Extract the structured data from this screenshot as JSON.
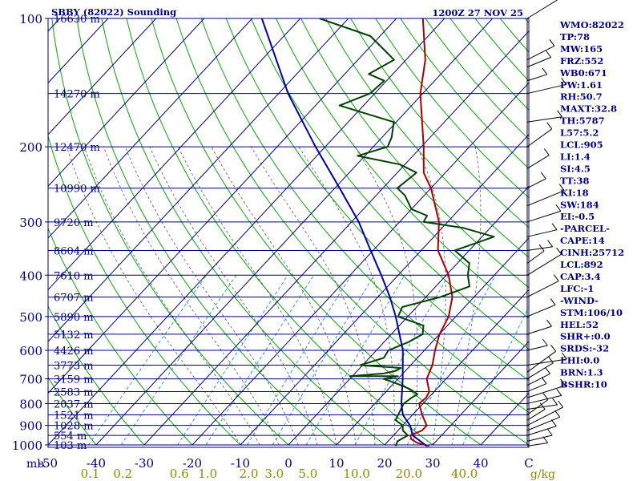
{
  "chart_data": {
    "type": "line",
    "title": "SBBY (82022) Sounding",
    "valid_time": "1200Z 27 NOV 25",
    "pressure_axis": {
      "unit_label": "mb",
      "ticks": [
        100,
        200,
        300,
        400,
        500,
        600,
        700,
        800,
        900,
        1000
      ],
      "range_hpa": [
        1000,
        100
      ]
    },
    "temperature_axis": {
      "ticks": [
        "-50",
        "-40",
        "-30",
        "-20",
        "-10",
        "0",
        "10",
        "20",
        "30",
        "40",
        "C"
      ],
      "range_c": [
        -50,
        50
      ]
    },
    "mixing_ratio_labels": {
      "values": [
        "0.1",
        "0.2",
        "0.6",
        "1.0",
        "2.0",
        "3.0",
        "5.0",
        "10.0",
        "20.0",
        "40.0"
      ],
      "unit": "g/kg"
    },
    "height_labels": [
      {
        "p": 100,
        "label": "16630 m"
      },
      {
        "p": 150,
        "label": "14270 m"
      },
      {
        "p": 200,
        "label": "12470 m"
      },
      {
        "p": 250,
        "label": "10990 m"
      },
      {
        "p": 300,
        "label": "9720 m"
      },
      {
        "p": 350,
        "label": "8604 m"
      },
      {
        "p": 400,
        "label": "7610 m"
      },
      {
        "p": 450,
        "label": "6707 m"
      },
      {
        "p": 500,
        "label": "5890 m"
      },
      {
        "p": 550,
        "label": "5132 m"
      },
      {
        "p": 600,
        "label": "4426 m"
      },
      {
        "p": 650,
        "label": "3773 m"
      },
      {
        "p": 700,
        "label": "3159 m"
      },
      {
        "p": 750,
        "label": "2583 m"
      },
      {
        "p": 800,
        "label": "2037 m"
      },
      {
        "p": 850,
        "label": "1521 m"
      },
      {
        "p": 900,
        "label": "1028 m"
      },
      {
        "p": 950,
        "label": "554 m"
      },
      {
        "p": 1000,
        "label": "103 m"
      }
    ],
    "series": [
      {
        "name": "Temperature",
        "color": "#aa0000",
        "points": [
          [
            1006,
            29.5
          ],
          [
            990,
            26.5
          ],
          [
            970,
            24.5
          ],
          [
            950,
            23.5
          ],
          [
            925,
            25.0
          ],
          [
            900,
            25.0
          ],
          [
            875,
            23.5
          ],
          [
            850,
            22.0
          ],
          [
            800,
            19.2
          ],
          [
            775,
            19.5
          ],
          [
            750,
            19.0
          ],
          [
            700,
            16.0
          ],
          [
            650,
            14.5
          ],
          [
            600,
            12.2
          ],
          [
            550,
            10.0
          ],
          [
            500,
            8.5
          ],
          [
            450,
            5.5
          ],
          [
            400,
            0.5
          ],
          [
            350,
            -6.5
          ],
          [
            300,
            -11.8
          ],
          [
            250,
            -20.0
          ],
          [
            230,
            -24.5
          ],
          [
            200,
            -29.5
          ],
          [
            150,
            -40.5
          ],
          [
            125,
            -46.0
          ],
          [
            100,
            -54.5
          ]
        ]
      },
      {
        "name": "Dewpoint",
        "color": "#004000",
        "points": [
          [
            1006,
            22.5
          ],
          [
            980,
            22.0
          ],
          [
            950,
            23.0
          ],
          [
            925,
            21.0
          ],
          [
            900,
            20.0
          ],
          [
            875,
            17.5
          ],
          [
            850,
            17.0
          ],
          [
            800,
            16.0
          ],
          [
            775,
            16.5
          ],
          [
            760,
            17.0
          ],
          [
            740,
            14.5
          ],
          [
            720,
            11.0
          ],
          [
            700,
            7.0
          ],
          [
            690,
            9.5
          ],
          [
            690,
            -0.5
          ],
          [
            680,
            6.0
          ],
          [
            670,
            8.0
          ],
          [
            660,
            8.5
          ],
          [
            650,
            -0.5
          ],
          [
            625,
            3.0
          ],
          [
            600,
            2.5
          ],
          [
            575,
            5.0
          ],
          [
            550,
            6.5
          ],
          [
            525,
            5.0
          ],
          [
            500,
            -2.0
          ],
          [
            475,
            -3.0
          ],
          [
            450,
            3.0
          ],
          [
            425,
            7.0
          ],
          [
            400,
            4.5
          ],
          [
            375,
            2.5
          ],
          [
            350,
            -3.0
          ],
          [
            325,
            2.5
          ],
          [
            310,
            -5.5
          ],
          [
            300,
            -15.0
          ],
          [
            290,
            -15.5
          ],
          [
            280,
            -20.0
          ],
          [
            260,
            -24.0
          ],
          [
            250,
            -27.0
          ],
          [
            230,
            -26.0
          ],
          [
            220,
            -31.0
          ],
          [
            210,
            -41.5
          ],
          [
            200,
            -37.0
          ],
          [
            190,
            -38.0
          ],
          [
            175,
            -40.5
          ],
          [
            160,
            -55.0
          ],
          [
            150,
            -51.0
          ],
          [
            140,
            -50.5
          ],
          [
            135,
            -55.0
          ],
          [
            125,
            -52.5
          ],
          [
            110,
            -62.0
          ],
          [
            100,
            -76.0
          ]
        ]
      },
      {
        "name": "Parcel",
        "color": "#0000aa",
        "points": [
          [
            1006,
            29.0
          ],
          [
            950,
            24.0
          ],
          [
            905,
            21.8
          ],
          [
            900,
            21.5
          ],
          [
            850,
            18.0
          ],
          [
            800,
            15.5
          ],
          [
            700,
            11.0
          ],
          [
            600,
            5.5
          ],
          [
            500,
            -2.5
          ],
          [
            450,
            -7.5
          ],
          [
            400,
            -13.5
          ],
          [
            350,
            -20.5
          ],
          [
            300,
            -28.5
          ],
          [
            250,
            -39.0
          ],
          [
            200,
            -52.0
          ],
          [
            150,
            -68.0
          ],
          [
            100,
            -88.0
          ]
        ]
      }
    ],
    "wind_barbs": {
      "pressures": [
        1006,
        980,
        950,
        925,
        900,
        875,
        850,
        825,
        800,
        775,
        750,
        725,
        700,
        675,
        650,
        600,
        550,
        500,
        450,
        400,
        375,
        350,
        325,
        300,
        275,
        250,
        225,
        200,
        175,
        150,
        140,
        130,
        125,
        100
      ]
    }
  },
  "indices": [
    "WMO:82022",
    "TP:78",
    "MW:165",
    "FRZ:552",
    "WB0:671",
    "PW:1.61",
    "RH:50.7",
    "MAXT:32.8",
    "TH:5787",
    "L57:5.2",
    "LCL:905",
    "LI:1.4",
    "SI:4.5",
    "TT:38",
    "KI:18",
    "SW:184",
    "EI:-0.5",
    "-PARCEL-",
    "CAPE:14",
    "CINH:25712",
    "LCL:892",
    "CAP:3.4",
    "LFC:-1",
    "-WIND-",
    "STM:106/10",
    "HEL:52",
    "SHR+:0.0",
    "SRDS:-32",
    "EHI:0.0",
    "BRN:1.3",
    "BSHR:10"
  ],
  "colors": {
    "frame": "#000080",
    "isobar": "#000080",
    "isotherm": "#000080",
    "dry_adiabat": "#00aa00",
    "moist_adiabat": "#555555",
    "mixing_ratio": "#3399cc",
    "mixing_label": "#8b8b00"
  }
}
